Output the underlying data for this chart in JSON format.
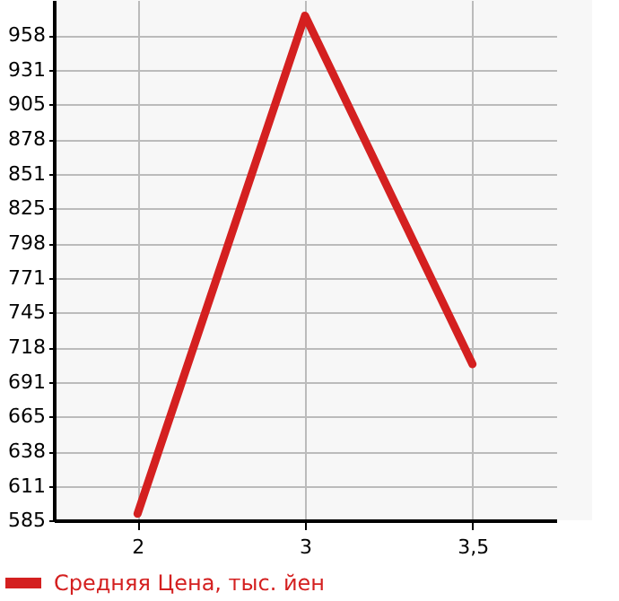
{
  "chart_data": {
    "type": "line",
    "categories": [
      "2",
      "3",
      "3,5"
    ],
    "series": [
      {
        "name": "Средняя Цена, тыс. йен",
        "color": "#d42020",
        "values": [
          590,
          973,
          705
        ]
      }
    ],
    "ylim": [
      585,
      985
    ],
    "yticks": [
      585,
      611,
      638,
      665,
      691,
      718,
      745,
      771,
      798,
      825,
      851,
      878,
      905,
      931,
      958
    ],
    "grid": true,
    "legend": "bottom left",
    "marker": "none",
    "line_style": "solid"
  }
}
